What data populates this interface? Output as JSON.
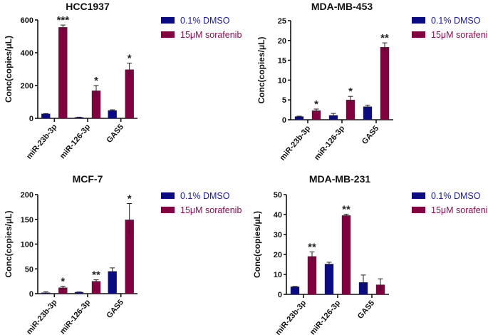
{
  "figure": {
    "legend": [
      {
        "label": "0.1% DMSO",
        "color": "#0a0a82",
        "text_color": "#1a1aa0"
      },
      {
        "label": "15μM sorafenib",
        "color": "#800040",
        "text_color": "#8a1050"
      }
    ]
  },
  "chart_data": [
    {
      "type": "bar",
      "title": "HCC1937",
      "ylabel": "Conc(copies/μL)",
      "xlabel": "",
      "categories": [
        "miR-23b-3p",
        "miR-126-3p",
        "GAS5"
      ],
      "ylim": [
        0,
        600
      ],
      "yticks": [
        0,
        200,
        400,
        600
      ],
      "series": [
        {
          "name": "0.1% DMSO",
          "values": [
            27,
            6,
            48
          ],
          "errors": [
            2,
            1,
            4
          ]
        },
        {
          "name": "15μM sorafenib",
          "values": [
            555,
            168,
            297
          ],
          "errors": [
            14,
            32,
            40
          ]
        }
      ],
      "significance": [
        "***",
        "*",
        "*"
      ]
    },
    {
      "type": "bar",
      "title": "MDA-MB-453",
      "ylabel": "Conc(copies/μL)",
      "xlabel": "",
      "categories": [
        "miR-23b-3p",
        "miR-126-3p",
        "GAS5"
      ],
      "ylim": [
        0,
        25
      ],
      "yticks": [
        0,
        5,
        10,
        15,
        20,
        25
      ],
      "series": [
        {
          "name": "0.1% DMSO",
          "values": [
            0.8,
            1.1,
            3.3
          ],
          "errors": [
            0.1,
            0.5,
            0.4
          ]
        },
        {
          "name": "15μM sorafenib",
          "values": [
            2.3,
            5.0,
            18.3
          ],
          "errors": [
            0.4,
            0.9,
            1.1
          ]
        }
      ],
      "significance": [
        "*",
        "*",
        "**"
      ]
    },
    {
      "type": "bar",
      "title": "MCF-7",
      "ylabel": "Conc(copies/μL)",
      "xlabel": "",
      "categories": [
        "miR-23b-3p",
        "miR-126-3p",
        "GAS5"
      ],
      "ylim": [
        0,
        200
      ],
      "yticks": [
        0,
        50,
        100,
        150,
        200
      ],
      "series": [
        {
          "name": "0.1% DMSO",
          "values": [
            2,
            3,
            45
          ],
          "errors": [
            2,
            0.5,
            7
          ]
        },
        {
          "name": "15μM sorafenib",
          "values": [
            12,
            25,
            149
          ],
          "errors": [
            3,
            3,
            33
          ]
        }
      ],
      "significance": [
        "*",
        "**",
        "*"
      ]
    },
    {
      "type": "bar",
      "title": "MDA-MB-231",
      "ylabel": "Conc(copies/μL)",
      "xlabel": "",
      "categories": [
        "miR-23b-3p",
        "miR-126-3p",
        "GAS5"
      ],
      "ylim": [
        0,
        50
      ],
      "yticks": [
        0,
        10,
        20,
        30,
        40,
        50
      ],
      "series": [
        {
          "name": "0.1% DMSO",
          "values": [
            3.8,
            15.2,
            6
          ],
          "errors": [
            0.2,
            0.9,
            3.7
          ]
        },
        {
          "name": "15μM sorafenib",
          "values": [
            19,
            39.5,
            4.8
          ],
          "errors": [
            2.3,
            0.7,
            3
          ]
        }
      ],
      "significance": [
        "**",
        "**",
        ""
      ]
    }
  ]
}
